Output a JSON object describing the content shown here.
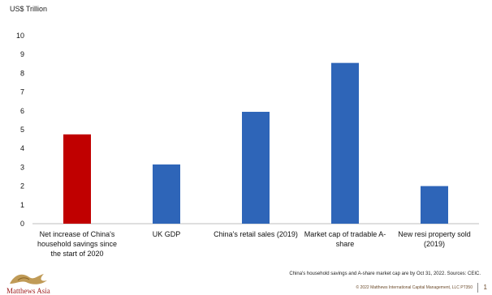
{
  "chart_data": {
    "type": "bar",
    "ylabel": "US$ Trillion",
    "ylim": [
      0,
      10
    ],
    "yticks": [
      0,
      1,
      2,
      3,
      4,
      5,
      6,
      7,
      8,
      9,
      10
    ],
    "categories": [
      [
        "Net increase of China's",
        "household savings since",
        "the start of 2020"
      ],
      [
        "UK GDP"
      ],
      [
        "China's retail sales (2019)"
      ],
      [
        "Market cap of tradable A-",
        "share"
      ],
      [
        "New resi property sold",
        "(2019)"
      ]
    ],
    "values": [
      4.75,
      3.15,
      5.95,
      8.55,
      2.0
    ],
    "bar_colors": [
      "#c00000",
      "#2e65b8",
      "#2e65b8",
      "#2e65b8",
      "#2e65b8"
    ]
  },
  "footer": {
    "note": "China's household savings and A-share market cap are by Oct 31, 2022. Sources: CEIC.",
    "copyright": "© 2022 Matthews International Capital Management, LLC  PT350",
    "page_number": "1",
    "logo_text": "Matthews Asia"
  }
}
